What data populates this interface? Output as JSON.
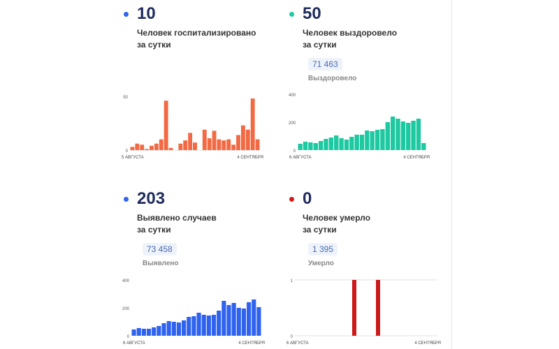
{
  "colors": {
    "hospitalized": "#f26a44",
    "recovered": "#1dc9a1",
    "cases": "#2f63ee",
    "deaths": "#cc1a1a",
    "value_text": "#1f2b5c",
    "dot_hosp": "#2f63ee",
    "dot_recovered": "#1dc9a1",
    "dot_cases": "#2f63ee",
    "dot_deaths": "#d41919"
  },
  "panels": {
    "hospitalized": {
      "value": "10",
      "caption_line1": "Человек госпитализировано",
      "caption_line2": "за сутки"
    },
    "recovered": {
      "value": "50",
      "caption_line1": "Человек выздоровело",
      "caption_line2": "за сутки",
      "total": "71 463",
      "total_label": "Выздоровело"
    },
    "cases": {
      "value": "203",
      "caption_line1": "Выявлено случаев",
      "caption_line2": "за сутки",
      "total": "73 458",
      "total_label": "Выявлено"
    },
    "deaths": {
      "value": "0",
      "caption_line1": "Человек умерло",
      "caption_line2": "за сутки",
      "total": "1 395",
      "total_label": "Умерло"
    }
  },
  "chart_data": [
    {
      "type": "bar",
      "id": "hospitalized",
      "x_start_label": "5 АВГУСТА",
      "x_end_label": "4 СЕНТЯБРЯ",
      "yticks": [
        0,
        50
      ],
      "ylim": [
        0,
        52
      ],
      "values": [
        3,
        6,
        5,
        1,
        4,
        6,
        10,
        46,
        2,
        0,
        6,
        9,
        16,
        7,
        0,
        19,
        11,
        18,
        10,
        9,
        10,
        5,
        14,
        23,
        19,
        48,
        10
      ],
      "missing_index": [
        14
      ]
    },
    {
      "type": "bar",
      "id": "recovered",
      "x_start_label": "6 АВГУСТА",
      "x_end_label": "4 СЕНТЯБРЯ",
      "yticks": [
        0,
        200,
        400
      ],
      "ylim": [
        0,
        400
      ],
      "values": [
        45,
        60,
        55,
        50,
        65,
        80,
        90,
        105,
        85,
        75,
        95,
        110,
        110,
        140,
        135,
        145,
        150,
        200,
        240,
        225,
        205,
        195,
        210,
        225,
        50
      ]
    },
    {
      "type": "bar",
      "id": "cases",
      "x_start_label": "6 АВГУСТА",
      "x_end_label": "4 СЕНТЯБРЯ",
      "yticks": [
        0,
        200,
        400
      ],
      "ylim": [
        0,
        400
      ],
      "values": [
        45,
        55,
        50,
        50,
        60,
        70,
        90,
        105,
        100,
        95,
        110,
        135,
        140,
        165,
        150,
        145,
        150,
        180,
        250,
        220,
        235,
        200,
        195,
        240,
        260,
        205
      ]
    },
    {
      "type": "bar",
      "id": "deaths",
      "x_start_label": "6 АВГУСТА",
      "x_end_label": "4 СЕНТЯБРЯ",
      "yticks": [
        0,
        1
      ],
      "ylim": [
        0,
        1
      ],
      "values": [
        0,
        0,
        0,
        0,
        0,
        0,
        0,
        0,
        0,
        0,
        0,
        0,
        1,
        0,
        0,
        0,
        0,
        1,
        0,
        0,
        0,
        0,
        0,
        0,
        0,
        0,
        0,
        0,
        0,
        0
      ]
    }
  ]
}
